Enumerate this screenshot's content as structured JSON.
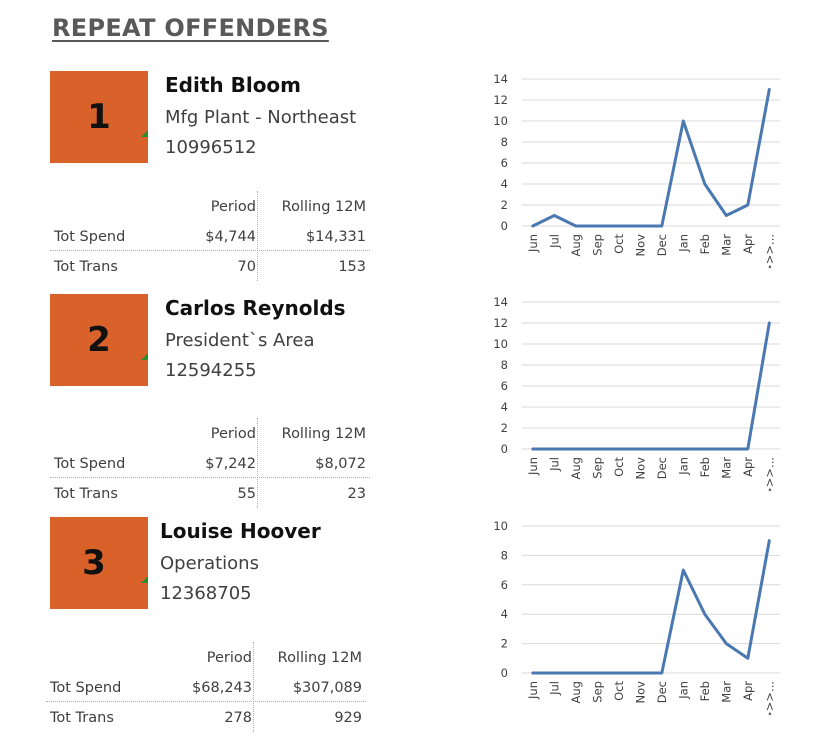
{
  "page": {
    "title": "REPEAT OFFENDERS"
  },
  "offenders": [
    {
      "rank": "1",
      "name": "Edith Bloom",
      "department": "Mfg Plant - Northeast",
      "id": "10996512",
      "stats": {
        "col_period": "Period",
        "col_rolling": "Rolling 12M",
        "spend_label": "Tot Spend",
        "spend_period": "$4,744",
        "spend_rolling": "$14,331",
        "trans_label": "Tot Trans",
        "trans_period": "70",
        "trans_rolling": "153"
      }
    },
    {
      "rank": "2",
      "name": "Carlos Reynolds",
      "department": "President`s Area",
      "id": "12594255",
      "stats": {
        "col_period": "Period",
        "col_rolling": "Rolling 12M",
        "spend_label": "Tot Spend",
        "spend_period": "$7,242",
        "spend_rolling": "$8,072",
        "trans_label": "Tot Trans",
        "trans_period": "55",
        "trans_rolling": "23"
      }
    },
    {
      "rank": "3",
      "name": "Louise Hoover",
      "department": "Operations",
      "id": "12368705",
      "stats": {
        "col_period": "Period",
        "col_rolling": "Rolling 12M",
        "spend_label": "Tot Spend",
        "spend_period": "$68,243",
        "spend_rolling": "$307,089",
        "trans_label": "Tot Trans",
        "trans_period": "278",
        "trans_rolling": "929"
      }
    }
  ],
  "colors": {
    "rank_box": "#d9622b",
    "line": "#4a78b0",
    "corner": "#2e8b2e"
  },
  "chart_data": [
    {
      "type": "line",
      "categories": [
        "Jun",
        "Jul",
        "Aug",
        "Sep",
        "Oct",
        "Nov",
        "Dec",
        "Jan",
        "Feb",
        "Mar",
        "Apr",
        ">>>..."
      ],
      "values": [
        0,
        1,
        0,
        0,
        0,
        0,
        0,
        10,
        4,
        1,
        2,
        13
      ],
      "ylim": [
        0,
        14
      ],
      "yticks": [
        0,
        2,
        4,
        6,
        8,
        10,
        12,
        14
      ],
      "grid": true
    },
    {
      "type": "line",
      "categories": [
        "Jun",
        "Jul",
        "Aug",
        "Sep",
        "Oct",
        "Nov",
        "Dec",
        "Jan",
        "Feb",
        "Mar",
        "Apr",
        ">>>..."
      ],
      "values": [
        0,
        0,
        0,
        0,
        0,
        0,
        0,
        0,
        0,
        0,
        0,
        12
      ],
      "ylim": [
        0,
        14
      ],
      "yticks": [
        0,
        2,
        4,
        6,
        8,
        10,
        12,
        14
      ],
      "grid": true
    },
    {
      "type": "line",
      "categories": [
        "Jun",
        "Jul",
        "Aug",
        "Sep",
        "Oct",
        "Nov",
        "Dec",
        "Jan",
        "Feb",
        "Mar",
        "Apr",
        ">>>..."
      ],
      "values": [
        0,
        0,
        0,
        0,
        0,
        0,
        0,
        7,
        4,
        2,
        1,
        9
      ],
      "ylim": [
        0,
        10
      ],
      "yticks": [
        0,
        2,
        4,
        6,
        8,
        10
      ],
      "grid": true
    }
  ]
}
